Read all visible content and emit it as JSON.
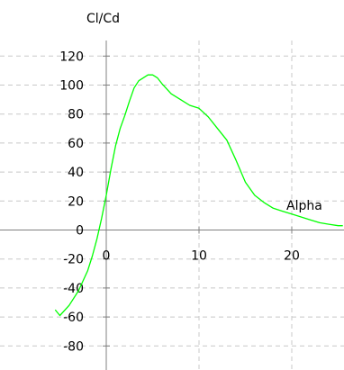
{
  "chart_data": {
    "type": "line",
    "title": "",
    "ylabel": "Cl/Cd",
    "xlabel": "Alpha",
    "xlim": [
      -5.6,
      25.6
    ],
    "ylim": [
      -92,
      131
    ],
    "grid": true,
    "legend": "none",
    "x_ticks": [
      {
        "value": 0,
        "label": "0"
      },
      {
        "value": 10,
        "label": "10"
      },
      {
        "value": 20,
        "label": "20"
      }
    ],
    "y_ticks": [
      {
        "value": 120,
        "label": "120"
      },
      {
        "value": 100,
        "label": "100"
      },
      {
        "value": 80,
        "label": "80"
      },
      {
        "value": 60,
        "label": "60"
      },
      {
        "value": 40,
        "label": "40"
      },
      {
        "value": 20,
        "label": "20"
      },
      {
        "value": 0,
        "label": "0"
      },
      {
        "value": -20,
        "label": "-20"
      },
      {
        "value": -40,
        "label": "-40"
      },
      {
        "value": -60,
        "label": "-60"
      },
      {
        "value": -80,
        "label": "-80"
      }
    ],
    "series": [
      {
        "color": "#00ff00",
        "x": [
          -5.5,
          -5.0,
          -4.0,
          -3.0,
          -2.0,
          -1.5,
          -1.0,
          -0.5,
          0.0,
          0.5,
          1.0,
          1.5,
          2.0,
          2.5,
          3.0,
          3.5,
          4.0,
          4.5,
          5.0,
          5.5,
          6.0,
          7.0,
          8.0,
          9.0,
          10.0,
          11.0,
          12.0,
          13.0,
          14.0,
          15.0,
          16.0,
          17.0,
          18.0,
          19.0,
          20.0,
          21.0,
          22.0,
          23.0,
          24.0,
          25.0,
          25.5
        ],
        "y": [
          -55,
          -59,
          -52,
          -42,
          -28,
          -18,
          -6,
          8,
          24,
          42,
          58,
          70,
          79,
          89,
          98,
          103,
          105,
          107,
          107,
          105,
          101,
          94,
          90,
          86,
          84,
          78,
          70,
          62,
          48,
          33,
          24,
          19,
          15,
          13,
          11,
          9,
          7,
          5,
          4,
          3,
          3
        ]
      }
    ]
  }
}
